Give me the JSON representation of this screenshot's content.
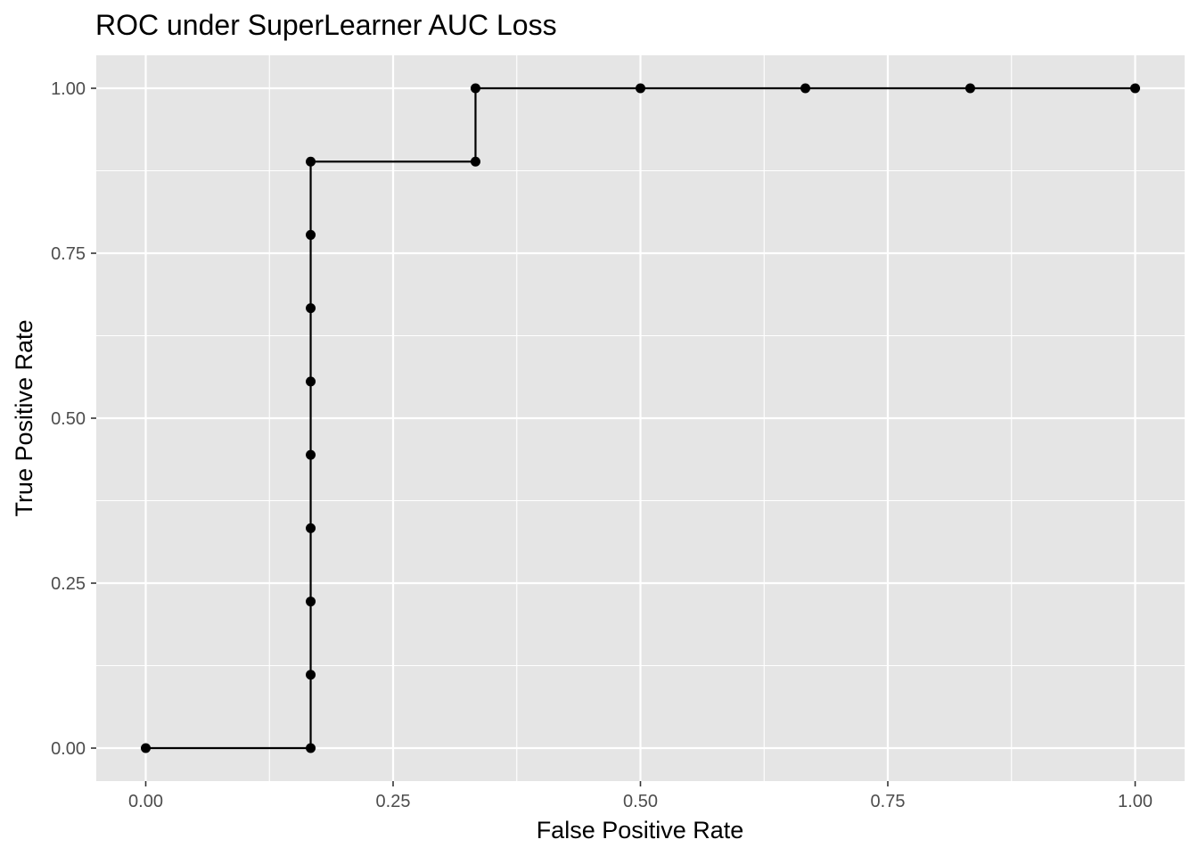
{
  "chart_data": {
    "type": "line",
    "title": "ROC under SuperLearner AUC Loss",
    "xlabel": "False Positive Rate",
    "ylabel": "True Positive Rate",
    "xlim": [
      -0.05,
      1.05
    ],
    "ylim": [
      -0.05,
      1.05
    ],
    "xticks": [
      0,
      0.25,
      0.5,
      0.75,
      1
    ],
    "yticks": [
      0,
      0.25,
      0.5,
      0.75,
      1
    ],
    "xtick_labels": [
      "0.00",
      "0.25",
      "0.50",
      "0.75",
      "1.00"
    ],
    "ytick_labels": [
      "0.00",
      "0.25",
      "0.50",
      "0.75",
      "1.00"
    ],
    "grid": true,
    "line_style": "step",
    "series": [
      {
        "x": [
          0,
          0.1667,
          0.1667,
          0.1667,
          0.1667,
          0.1667,
          0.1667,
          0.1667,
          0.1667,
          0.1667,
          0.3333,
          0.3333,
          0.5,
          0.6667,
          0.8333,
          1.0
        ],
        "y": [
          0,
          0,
          0.1111,
          0.2222,
          0.3333,
          0.4444,
          0.5556,
          0.6667,
          0.7778,
          0.8889,
          0.8889,
          1.0,
          1.0,
          1.0,
          1.0,
          1.0
        ]
      }
    ],
    "colors": {
      "panel": "#e5e5e5",
      "grid": "#ffffff",
      "line": "#000000",
      "point": "#000000",
      "tick_text": "#4d4d4d"
    }
  }
}
